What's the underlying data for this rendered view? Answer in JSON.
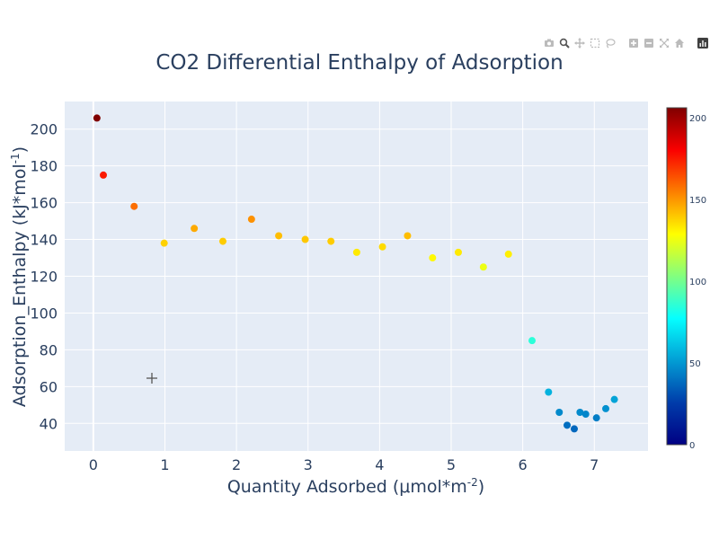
{
  "chart_data": {
    "type": "scatter",
    "title": "CO2 Differential Enthalpy of Adsorption",
    "xlabel": "Quantity Adsorbed (μmol*m",
    "xlabel_sup": "-2",
    "xlabel_close": ")",
    "ylabel": "Adsorption_Enthalpy (kJ*mol",
    "ylabel_sup": "-1",
    "ylabel_close": ")",
    "xlim": [
      -0.4,
      7.75
    ],
    "ylim": [
      25,
      215
    ],
    "xticks": [
      "0",
      "1",
      "2",
      "3",
      "4",
      "5",
      "6",
      "7"
    ],
    "yticks": [
      "40",
      "60",
      "80",
      "100",
      "120",
      "140",
      "160",
      "180",
      "200"
    ],
    "grid": true,
    "colorscale": "Jet",
    "colorbar_range": [
      0,
      206
    ],
    "colorbar_ticks": [
      "0",
      "50",
      "100",
      "150",
      "200"
    ],
    "x": [
      0.05,
      0.14,
      0.57,
      0.99,
      1.41,
      1.81,
      2.21,
      2.59,
      2.96,
      3.32,
      3.68,
      4.04,
      4.39,
      4.74,
      5.1,
      5.45,
      5.8,
      6.13,
      6.36,
      6.51,
      6.62,
      6.72,
      6.8,
      6.88,
      7.03,
      7.16,
      7.28
    ],
    "y": [
      206,
      175,
      158,
      138,
      146,
      139,
      151,
      142,
      140,
      139,
      133,
      136,
      142,
      130,
      133,
      125,
      132,
      85,
      57,
      46,
      39,
      37,
      46,
      45,
      43,
      48,
      53
    ]
  },
  "modebar": {
    "buttons": [
      "camera-icon",
      "zoom-icon",
      "pan-icon",
      "box-select-icon",
      "lasso-select-icon",
      "zoom-in-icon",
      "zoom-out-icon",
      "autoscale-icon",
      "reset-axes-icon",
      "plotly-logo-icon"
    ]
  }
}
